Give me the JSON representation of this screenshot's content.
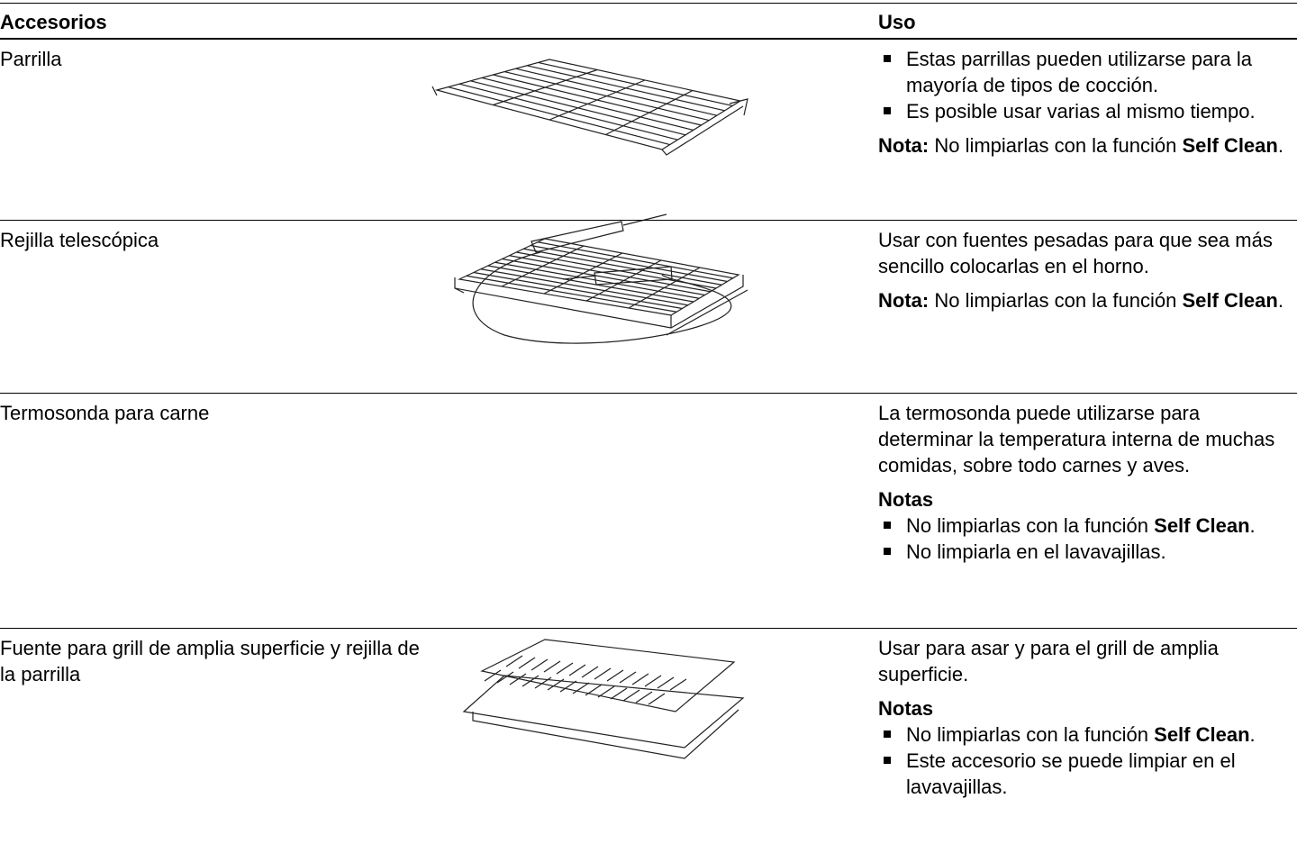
{
  "header": {
    "col1": "Accesorios",
    "col2": "Uso"
  },
  "rows": [
    {
      "name": "Parrilla",
      "use": [
        {
          "bullets": [
            [
              {
                "text": "Estas parrillas pueden utilizarse para la mayoría de tipos de cocción."
              }
            ],
            [
              {
                "text": "Es posible usar varias al mismo tiempo."
              }
            ]
          ]
        },
        {
          "paragraph": [
            {
              "text": "Nota:",
              "bold": true
            },
            {
              "text": " No limpiarlas con la función "
            },
            {
              "text": "Self Clean",
              "bold": true
            },
            {
              "text": "."
            }
          ]
        }
      ]
    },
    {
      "name": "Rejilla telescópica",
      "use": [
        {
          "paragraph": [
            {
              "text": "Usar con fuentes pesadas para que sea más sencillo colocarlas en el horno."
            }
          ]
        },
        {
          "paragraph": [
            {
              "text": "Nota:",
              "bold": true
            },
            {
              "text": " No limpiarlas con la función "
            },
            {
              "text": "Self Clean",
              "bold": true
            },
            {
              "text": "."
            }
          ]
        }
      ]
    },
    {
      "name": "Termosonda para carne",
      "use": [
        {
          "paragraph": [
            {
              "text": "La termosonda puede utilizarse para determinar la temperatura interna de muchas comidas, sobre todo carnes y aves."
            }
          ]
        },
        {
          "heading": "Notas"
        },
        {
          "bullets": [
            [
              {
                "text": "No limpiarlas con la función "
              },
              {
                "text": "Self Clean",
                "bold": true
              },
              {
                "text": "."
              }
            ],
            [
              {
                "text": "No limpiarla en el lavavajillas."
              }
            ]
          ]
        }
      ]
    },
    {
      "name": "Fuente para grill de amplia superficie y rejilla de la parrilla",
      "use": [
        {
          "paragraph": [
            {
              "text": "Usar para asar y para el grill de amplia superficie."
            }
          ]
        },
        {
          "heading": "Notas"
        },
        {
          "bullets": [
            [
              {
                "text": "No limpiarlas con la función "
              },
              {
                "text": "Self Clean",
                "bold": true
              },
              {
                "text": "."
              }
            ],
            [
              {
                "text": "Este accesorio se puede limpiar en el lavavajillas."
              }
            ]
          ]
        }
      ]
    }
  ]
}
